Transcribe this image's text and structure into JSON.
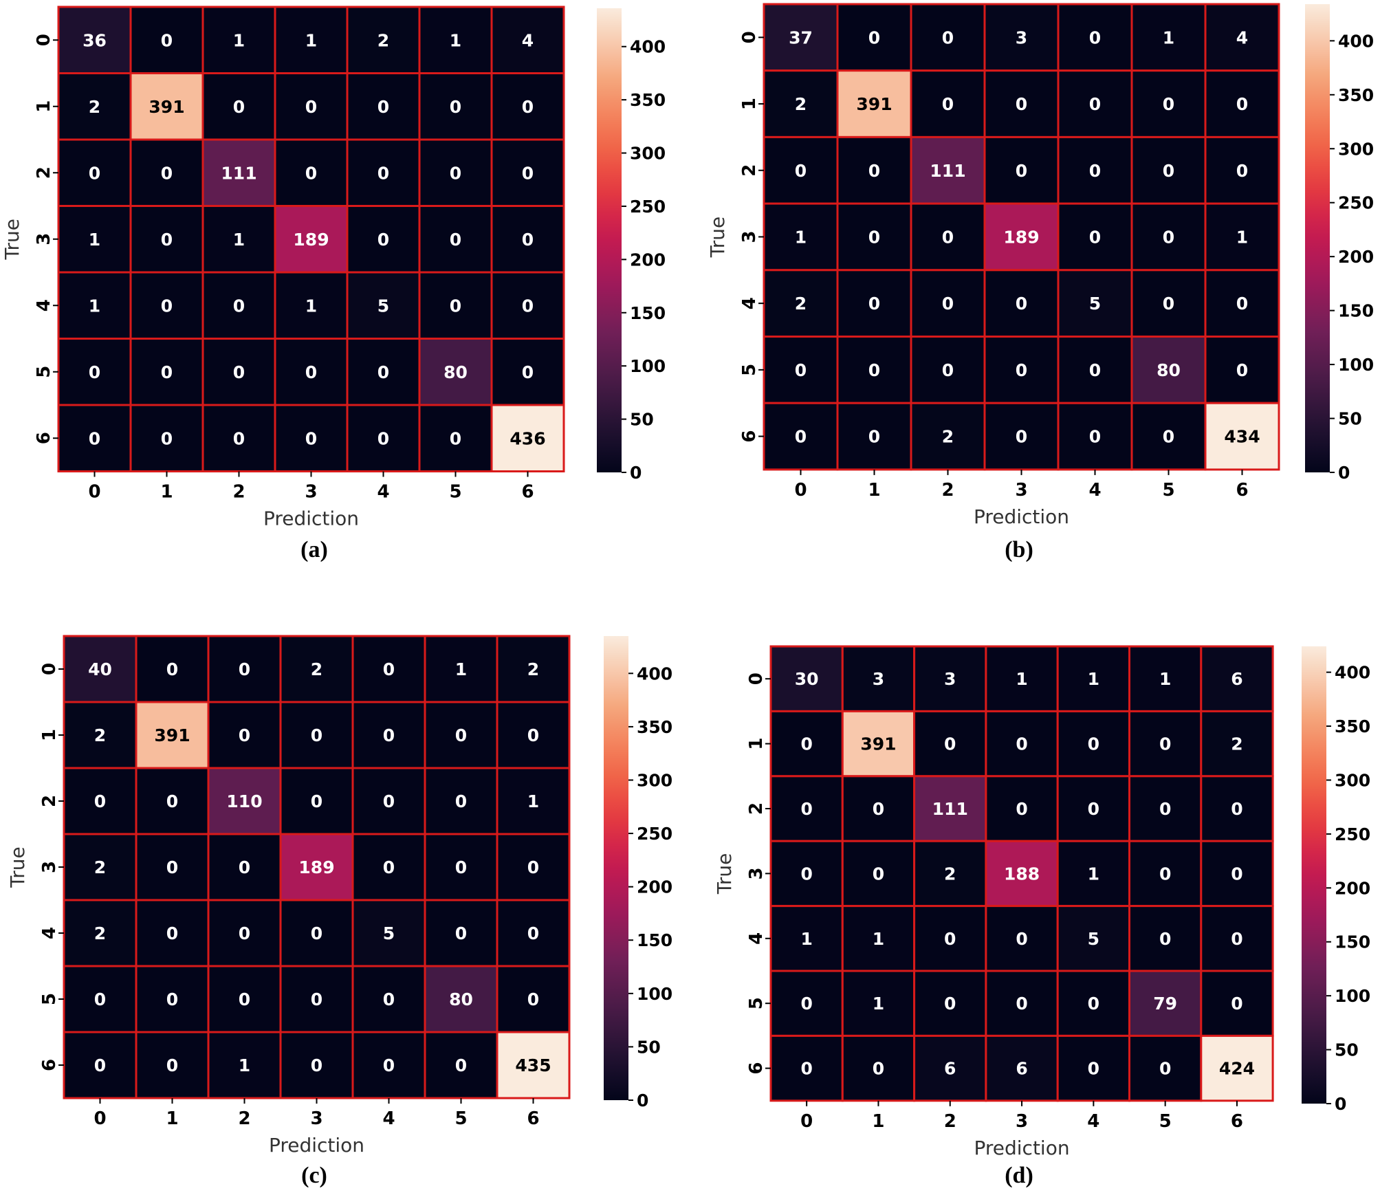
{
  "chart_data": [
    {
      "type": "heatmap",
      "caption": "(a)",
      "xlabel": "Prediction",
      "ylabel": "True",
      "x_categories": [
        "0",
        "1",
        "2",
        "3",
        "4",
        "5",
        "6"
      ],
      "y_categories": [
        "0",
        "1",
        "2",
        "3",
        "4",
        "5",
        "6"
      ],
      "matrix": [
        [
          36,
          0,
          1,
          1,
          2,
          1,
          4
        ],
        [
          2,
          391,
          0,
          0,
          0,
          0,
          0
        ],
        [
          0,
          0,
          111,
          0,
          0,
          0,
          0
        ],
        [
          1,
          0,
          1,
          189,
          0,
          0,
          0
        ],
        [
          1,
          0,
          0,
          1,
          5,
          0,
          0
        ],
        [
          0,
          0,
          0,
          0,
          0,
          80,
          0
        ],
        [
          0,
          0,
          0,
          0,
          0,
          0,
          436
        ]
      ],
      "colorbar": {
        "min": 0,
        "max": 436,
        "ticks": [
          0,
          50,
          100,
          150,
          200,
          250,
          300,
          350,
          400
        ]
      }
    },
    {
      "type": "heatmap",
      "caption": "(b)",
      "xlabel": "Prediction",
      "ylabel": "True",
      "x_categories": [
        "0",
        "1",
        "2",
        "3",
        "4",
        "5",
        "6"
      ],
      "y_categories": [
        "0",
        "1",
        "2",
        "3",
        "4",
        "5",
        "6"
      ],
      "matrix": [
        [
          37,
          0,
          0,
          3,
          0,
          1,
          4
        ],
        [
          2,
          391,
          0,
          0,
          0,
          0,
          0
        ],
        [
          0,
          0,
          111,
          0,
          0,
          0,
          0
        ],
        [
          1,
          0,
          0,
          189,
          0,
          0,
          1
        ],
        [
          2,
          0,
          0,
          0,
          5,
          0,
          0
        ],
        [
          0,
          0,
          0,
          0,
          0,
          80,
          0
        ],
        [
          0,
          0,
          2,
          0,
          0,
          0,
          434
        ]
      ],
      "colorbar": {
        "min": 0,
        "max": 434,
        "ticks": [
          0,
          50,
          100,
          150,
          200,
          250,
          300,
          350,
          400
        ]
      }
    },
    {
      "type": "heatmap",
      "caption": "(c)",
      "xlabel": "Prediction",
      "ylabel": "True",
      "x_categories": [
        "0",
        "1",
        "2",
        "3",
        "4",
        "5",
        "6"
      ],
      "y_categories": [
        "0",
        "1",
        "2",
        "3",
        "4",
        "5",
        "6"
      ],
      "matrix": [
        [
          40,
          0,
          0,
          2,
          0,
          1,
          2
        ],
        [
          2,
          391,
          0,
          0,
          0,
          0,
          0
        ],
        [
          0,
          0,
          110,
          0,
          0,
          0,
          1
        ],
        [
          2,
          0,
          0,
          189,
          0,
          0,
          0
        ],
        [
          2,
          0,
          0,
          0,
          5,
          0,
          0
        ],
        [
          0,
          0,
          0,
          0,
          0,
          80,
          0
        ],
        [
          0,
          0,
          1,
          0,
          0,
          0,
          435
        ]
      ],
      "colorbar": {
        "min": 0,
        "max": 435,
        "ticks": [
          0,
          50,
          100,
          150,
          200,
          250,
          300,
          350,
          400
        ]
      }
    },
    {
      "type": "heatmap",
      "caption": "(d)",
      "xlabel": "Prediction",
      "ylabel": "True",
      "x_categories": [
        "0",
        "1",
        "2",
        "3",
        "4",
        "5",
        "6"
      ],
      "y_categories": [
        "0",
        "1",
        "2",
        "3",
        "4",
        "5",
        "6"
      ],
      "matrix": [
        [
          30,
          3,
          3,
          1,
          1,
          1,
          6
        ],
        [
          0,
          391,
          0,
          0,
          0,
          0,
          2
        ],
        [
          0,
          0,
          111,
          0,
          0,
          0,
          0
        ],
        [
          0,
          0,
          2,
          188,
          1,
          0,
          0
        ],
        [
          1,
          1,
          0,
          0,
          5,
          0,
          0
        ],
        [
          0,
          1,
          0,
          0,
          0,
          79,
          0
        ],
        [
          0,
          0,
          6,
          6,
          0,
          0,
          424
        ]
      ],
      "colorbar": {
        "min": 0,
        "max": 424,
        "ticks": [
          0,
          50,
          100,
          150,
          200,
          250,
          300,
          350,
          400
        ]
      }
    }
  ],
  "colors": {
    "gridline": "#d91a1a",
    "colormap": "rocket",
    "text_light": "#ffffff",
    "text_dark": "#000000"
  }
}
